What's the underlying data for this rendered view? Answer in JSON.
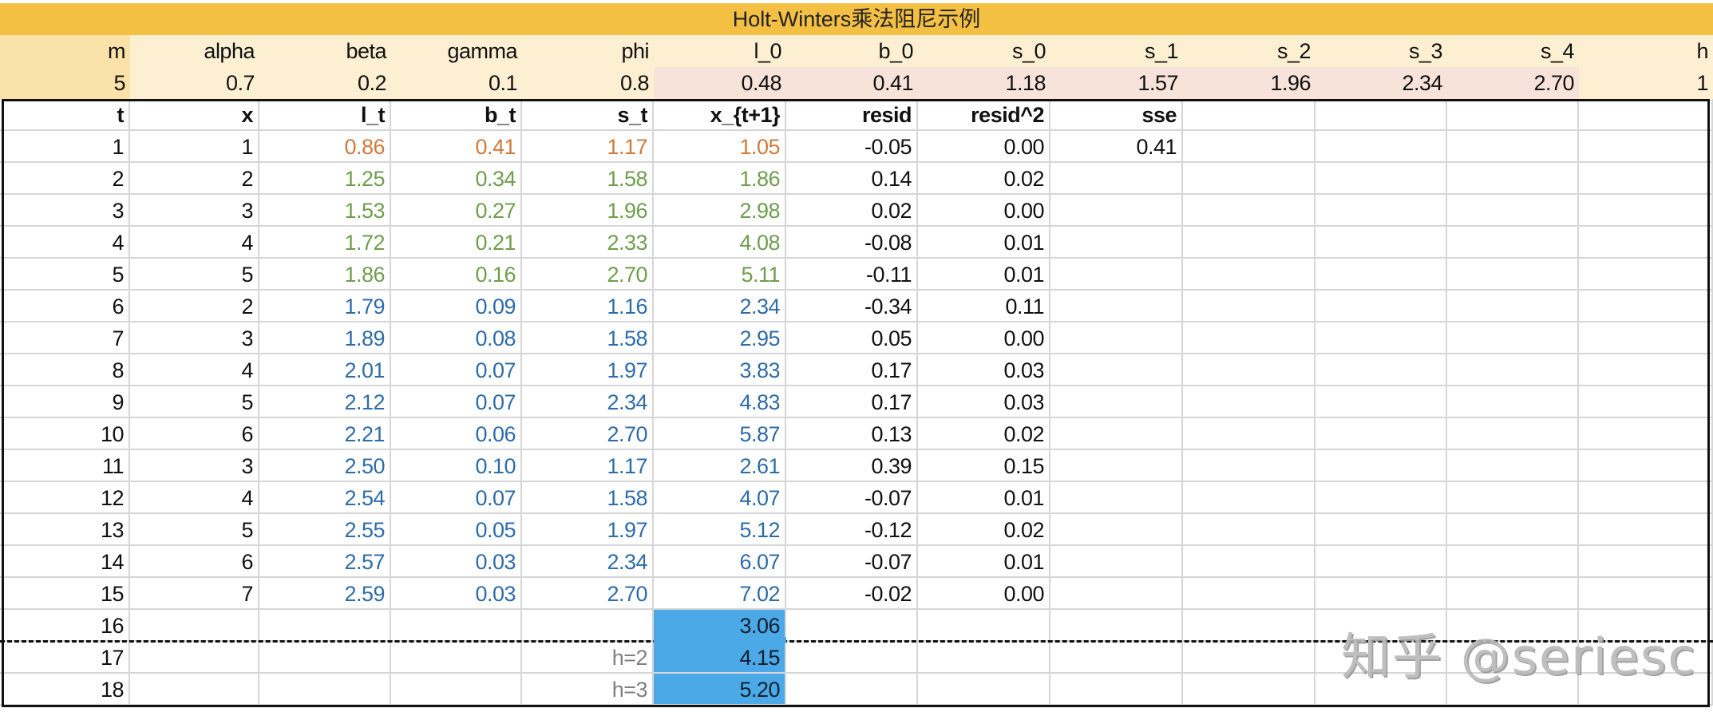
{
  "title": "Holt-Winters乘法阻尼示例",
  "params": {
    "headers": [
      "m",
      "alpha",
      "beta",
      "gamma",
      "phi",
      "l_0",
      "b_0",
      "s_0",
      "s_1",
      "s_2",
      "s_3",
      "s_4",
      "h"
    ],
    "values": [
      "5",
      "0.7",
      "0.2",
      "0.1",
      "0.8",
      "0.48",
      "0.41",
      "1.18",
      "1.57",
      "1.96",
      "2.34",
      "2.70",
      "1"
    ]
  },
  "table": {
    "headers": [
      "t",
      "x",
      "l_t",
      "b_t",
      "s_t",
      "x_{t+1}",
      "resid",
      "resid^2",
      "sse",
      "",
      "",
      "",
      ""
    ],
    "rows": [
      [
        "1",
        "1",
        "0.86",
        "0.41",
        "1.17",
        "1.05",
        "-0.05",
        "0.00",
        "0.41"
      ],
      [
        "2",
        "2",
        "1.25",
        "0.34",
        "1.58",
        "1.86",
        "0.14",
        "0.02",
        ""
      ],
      [
        "3",
        "3",
        "1.53",
        "0.27",
        "1.96",
        "2.98",
        "0.02",
        "0.00",
        ""
      ],
      [
        "4",
        "4",
        "1.72",
        "0.21",
        "2.33",
        "4.08",
        "-0.08",
        "0.01",
        ""
      ],
      [
        "5",
        "5",
        "1.86",
        "0.16",
        "2.70",
        "5.11",
        "-0.11",
        "0.01",
        ""
      ],
      [
        "6",
        "2",
        "1.79",
        "0.09",
        "1.16",
        "2.34",
        "-0.34",
        "0.11",
        ""
      ],
      [
        "7",
        "3",
        "1.89",
        "0.08",
        "1.58",
        "2.95",
        "0.05",
        "0.00",
        ""
      ],
      [
        "8",
        "4",
        "2.01",
        "0.07",
        "1.97",
        "3.83",
        "0.17",
        "0.03",
        ""
      ],
      [
        "9",
        "5",
        "2.12",
        "0.07",
        "2.34",
        "4.83",
        "0.17",
        "0.03",
        ""
      ],
      [
        "10",
        "6",
        "2.21",
        "0.06",
        "2.70",
        "5.87",
        "0.13",
        "0.02",
        ""
      ],
      [
        "11",
        "3",
        "2.50",
        "0.10",
        "1.17",
        "2.61",
        "0.39",
        "0.15",
        ""
      ],
      [
        "12",
        "4",
        "2.54",
        "0.07",
        "1.58",
        "4.07",
        "-0.07",
        "0.01",
        ""
      ],
      [
        "13",
        "5",
        "2.55",
        "0.05",
        "1.97",
        "5.12",
        "-0.12",
        "0.02",
        ""
      ],
      [
        "14",
        "6",
        "2.57",
        "0.03",
        "2.34",
        "6.07",
        "-0.07",
        "0.01",
        ""
      ],
      [
        "15",
        "7",
        "2.59",
        "0.03",
        "2.70",
        "7.02",
        "-0.02",
        "0.00",
        ""
      ],
      [
        "16",
        "",
        "",
        "",
        "",
        "3.06",
        "",
        "",
        ""
      ],
      [
        "17",
        "",
        "",
        "",
        "h=2",
        "4.15",
        "",
        "",
        ""
      ],
      [
        "18",
        "",
        "",
        "",
        "h=3",
        "5.20",
        "",
        "",
        ""
      ]
    ]
  },
  "colors": {
    "title_bg": "#f4c043",
    "param_bg": "#fdf0d2",
    "param_m_bg": "#fbe2a8",
    "param_init_bg": "#f8e3da",
    "init_row_text": "#d07a3c",
    "first_season_text": "#6f9e4e",
    "later_text": "#2e6ca8",
    "forecast_bg": "#4aa9e6"
  },
  "watermark": "知乎 @seriesc"
}
